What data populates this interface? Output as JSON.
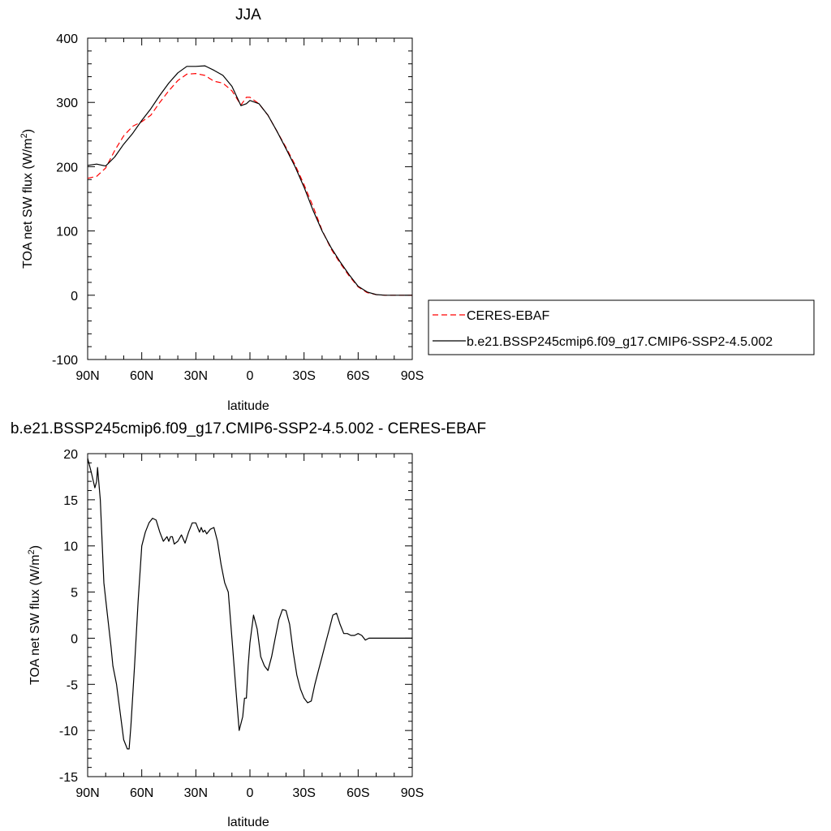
{
  "chart_data": [
    {
      "type": "line",
      "title": "JJA",
      "xlabel": "latitude",
      "ylabel": "TOA net SW flux (W/m",
      "ylabel_sup": "2",
      "ylabel_close": ")",
      "xlim": [
        90,
        -90
      ],
      "ylim": [
        -100,
        400
      ],
      "xticks": [
        90,
        60,
        30,
        0,
        -30,
        -60,
        -90
      ],
      "xtick_labels": [
        "90N",
        "60N",
        "30N",
        "0",
        "30S",
        "60S",
        "90S"
      ],
      "yticks": [
        -100,
        0,
        100,
        200,
        300,
        400
      ],
      "ytick_labels": [
        "-100",
        "0",
        "100",
        "200",
        "300",
        "400"
      ],
      "legend": "right-side",
      "grid": false,
      "series": [
        {
          "name": "CERES-EBAF",
          "color": "#ff0000",
          "style": "dashed",
          "x": [
            90,
            85,
            80,
            75,
            70,
            65,
            60,
            55,
            50,
            45,
            40,
            35,
            30,
            25,
            20,
            15,
            10,
            5,
            2,
            0,
            -5,
            -10,
            -15,
            -20,
            -25,
            -30,
            -35,
            -40,
            -45,
            -50,
            -55,
            -60,
            -65,
            -70,
            -75,
            -80,
            -85,
            -90
          ],
          "y": [
            182,
            185,
            198,
            225,
            248,
            263,
            270,
            280,
            300,
            318,
            334,
            344,
            345,
            342,
            333,
            330,
            318,
            296,
            308,
            308,
            298,
            280,
            255,
            230,
            203,
            172,
            138,
            101,
            72,
            50,
            30,
            13,
            4,
            1,
            0,
            0,
            0,
            0
          ]
        },
        {
          "name": "b.e21.BSSP245cmip6.f09_g17.CMIP6-SSP2-4.5.002",
          "color": "#000000",
          "style": "solid",
          "x": [
            90,
            85,
            80,
            75,
            70,
            65,
            60,
            55,
            50,
            45,
            40,
            35,
            30,
            25,
            20,
            15,
            10,
            5,
            2,
            0,
            -5,
            -10,
            -15,
            -20,
            -25,
            -30,
            -35,
            -40,
            -45,
            -50,
            -55,
            -60,
            -65,
            -70,
            -75,
            -80,
            -85,
            -90
          ],
          "y": [
            202,
            204,
            201,
            215,
            235,
            252,
            272,
            290,
            311,
            330,
            346,
            356,
            356,
            357,
            350,
            342,
            325,
            295,
            298,
            303,
            298,
            280,
            255,
            228,
            200,
            168,
            132,
            100,
            74,
            52,
            32,
            14,
            5,
            1,
            0,
            0,
            0,
            0
          ]
        }
      ]
    },
    {
      "type": "line",
      "title": "b.e21.BSSP245cmip6.f09_g17.CMIP6-SSP2-4.5.002 - CERES-EBAF",
      "xlabel": "latitude",
      "ylabel": "TOA net SW flux (W/m",
      "ylabel_sup": "2",
      "ylabel_close": ")",
      "xlim": [
        90,
        -90
      ],
      "ylim": [
        -15,
        20
      ],
      "xticks": [
        90,
        60,
        30,
        0,
        -30,
        -60,
        -90
      ],
      "xtick_labels": [
        "90N",
        "60N",
        "30N",
        "0",
        "30S",
        "60S",
        "90S"
      ],
      "yticks": [
        -15,
        -10,
        -5,
        0,
        5,
        10,
        15,
        20
      ],
      "ytick_labels": [
        "-15",
        "-10",
        "-5",
        "0",
        "5",
        "10",
        "15",
        "20"
      ],
      "grid": false,
      "series": [
        {
          "color": "#000000",
          "style": "solid",
          "x": [
            90,
            88,
            86,
            85,
            84.5,
            83,
            81,
            79,
            77,
            76,
            74,
            72,
            70,
            68,
            67,
            66,
            64,
            62,
            60,
            58,
            56,
            54,
            52,
            50,
            48,
            46,
            45,
            44,
            43,
            42,
            40,
            38,
            36,
            34,
            32,
            30,
            28,
            27,
            26,
            25,
            24,
            22,
            20,
            18,
            16,
            14,
            12,
            10,
            8,
            6,
            4,
            3,
            2,
            1,
            0,
            -1,
            -2,
            -4,
            -6,
            -8,
            -10,
            -12,
            -14,
            -16,
            -18,
            -20,
            -22,
            -24,
            -26,
            -28,
            -30,
            -32,
            -34,
            -36,
            -38,
            -40,
            -42,
            -44,
            -46,
            -48,
            -50,
            -52,
            -54,
            -56,
            -58,
            -60,
            -62,
            -64,
            -66,
            -68,
            -70,
            -72,
            -74,
            -76,
            -77,
            -78,
            -80,
            -82,
            -84,
            -86,
            -88,
            -90
          ],
          "y": [
            19.5,
            18,
            16.3,
            17,
            18.5,
            15,
            6,
            2.5,
            -1,
            -3,
            -5,
            -8,
            -11,
            -12,
            -12,
            -9.5,
            -3,
            4,
            10,
            11.5,
            12.5,
            13,
            12.8,
            11.5,
            10.5,
            11,
            10.5,
            11,
            11,
            10.2,
            10.5,
            11.2,
            10.3,
            11.5,
            12.5,
            12.5,
            11.5,
            12,
            11.5,
            11.7,
            11.3,
            11.8,
            12,
            10.5,
            8,
            6,
            5,
            0,
            -5,
            -10,
            -8.5,
            -6.5,
            -6.5,
            -3,
            -0.5,
            1,
            2.5,
            1,
            -2,
            -3,
            -3.5,
            -2,
            0,
            2,
            3.1,
            3,
            1.5,
            -1.5,
            -4,
            -5.5,
            -6.5,
            -7,
            -6.8,
            -5,
            -3.5,
            -2,
            -0.5,
            1,
            2.5,
            2.7,
            1.5,
            0.5,
            0.5,
            0.3,
            0.3,
            0.5,
            0.3,
            -0.2,
            0,
            0,
            0,
            0,
            0,
            0,
            0,
            0,
            0,
            0,
            0,
            0,
            0,
            0
          ]
        }
      ]
    }
  ]
}
